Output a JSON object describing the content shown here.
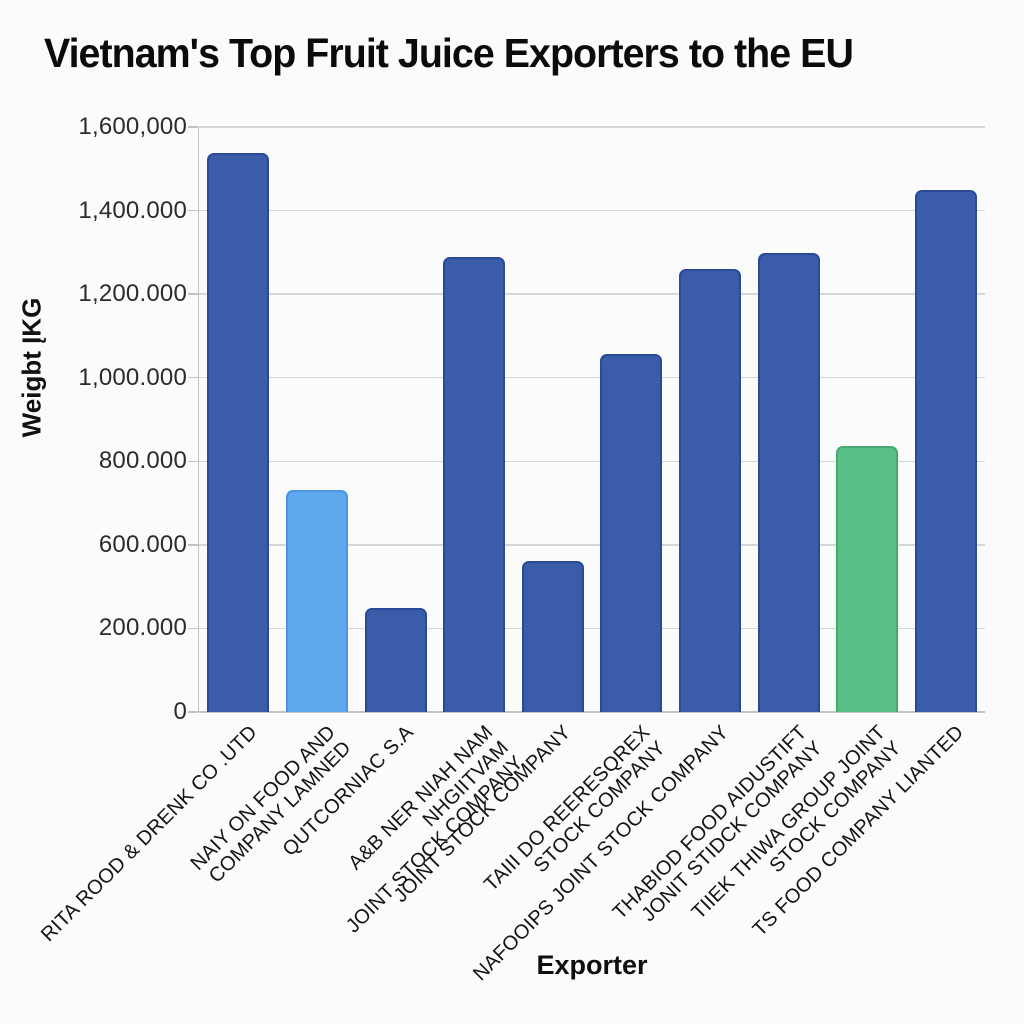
{
  "page": {
    "background": "#fbfbfb"
  },
  "chart_data": {
    "type": "bar",
    "title": "Vietnam's Top Fruit Juice Exporters to the EU",
    "xlabel": "Exporter",
    "ylabel": "Weigbt ĮKG",
    "ylim": [
      0,
      1600000
    ],
    "grid": true,
    "legend": "none",
    "y_tick_labels_top_to_bottom": [
      "1,600,000",
      "1,400.000",
      "1,200.000",
      "1,000.000",
      "800.000",
      "600.000",
      "200.000",
      "0"
    ],
    "categories": [
      "RITA ROOD & DRENK CO .UTD",
      "NAIY ON FOOD AND COMPANY LAMNED",
      "QUTCORNIAC S.A",
      "A&B NER NIAH NAM NHGIITVAM JOINT STOCK COMPANY",
      "JOINT STOCK COMPANY",
      "TAIII DO REERESQREX STOCK COMPANY",
      "NAFOOIPS JOINT STOCK COMPANY",
      "THABIOD FOOD AIDUSTIFT JONIT STIDCK COMPANY",
      "TIIEK THIWA GROUP JOINT STOCK COMPANY",
      "TS FOOD COMPANY LIANTED"
    ],
    "values": [
      1530000,
      730000,
      250000,
      1290000,
      560000,
      1060000,
      1260000,
      1300000,
      840000,
      1450000
    ],
    "bars": [
      {
        "label_lines": [
          "RITA ROOD & DRENK CO .UTD"
        ],
        "value": 1530000,
        "color": "default",
        "height_frac": 0.955
      },
      {
        "label_lines": [
          "NAIY ON FOOD AND",
          "COMPANY LAMNED"
        ],
        "value": 730000,
        "color": "light_blue",
        "height_frac": 0.38
      },
      {
        "label_lines": [
          "QUTCORNIAC S.A"
        ],
        "value": 250000,
        "color": "default",
        "height_frac": 0.178
      },
      {
        "label_lines": [
          "A&B NER NIAH NAM",
          "NHGIITVAM",
          "JOINT STOCK COMPANY"
        ],
        "value": 1290000,
        "color": "default",
        "height_frac": 0.777
      },
      {
        "label_lines": [
          "JOINT STOCK COMPANY"
        ],
        "value": 560000,
        "color": "default",
        "height_frac": 0.258
      },
      {
        "label_lines": [
          "TAIII DO REERESQREX",
          "STOCK COMPANY"
        ],
        "value": 1060000,
        "color": "default",
        "height_frac": 0.612
      },
      {
        "label_lines": [
          "NAFOOIPS JOINT STOCK COMPANY"
        ],
        "value": 1260000,
        "color": "default",
        "height_frac": 0.758
      },
      {
        "label_lines": [
          "THABIOD FOOD AIDUSTIFT",
          "JONIT STIDCK COMPANY"
        ],
        "value": 1300000,
        "color": "default",
        "height_frac": 0.784
      },
      {
        "label_lines": [
          "TIIEK THIWA GROUP JOINT",
          "STOCK COMPANY"
        ],
        "value": 840000,
        "color": "green",
        "height_frac": 0.455
      },
      {
        "label_lines": [
          "TS FOOD COMPANY LIANTED"
        ],
        "value": 1450000,
        "color": "default",
        "height_frac": 0.893
      }
    ],
    "colors": {
      "default": "#3a5ca9",
      "default_border": "#2a4a99",
      "light_blue": "#5fa8f0",
      "light_blue_border": "#4a96e2",
      "green": "#58bf87",
      "green_border": "#43aa72",
      "gridline": "#d6d6d6",
      "axis_line": "#c3c3c3",
      "text": "#1a1a1a"
    }
  }
}
